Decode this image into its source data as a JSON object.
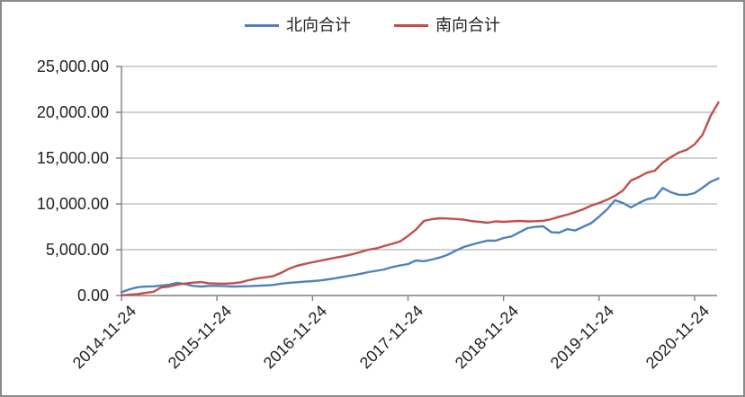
{
  "page": {
    "background": "#ffffff",
    "border_color": "#8a8a8a"
  },
  "chart_data": {
    "type": "line",
    "title": "",
    "legend_position": "top",
    "grid": true,
    "axis_color": "#7f7f7f",
    "grid_color": "#a3a3a3",
    "ylim": [
      0,
      25000
    ],
    "y_tick_labels": [
      "25,000.00",
      "20,000.00",
      "15,000.00",
      "10,000.00",
      "5,000.00",
      "0.00"
    ],
    "y_tick_values": [
      25000,
      20000,
      15000,
      10000,
      5000,
      0
    ],
    "x_tick_labels": [
      "2014-11-24",
      "2015-11-24",
      "2016-11-24",
      "2017-11-24",
      "2018-11-24",
      "2019-11-24",
      "2020-11-24"
    ],
    "x_tick_month_index": [
      0,
      12,
      24,
      36,
      48,
      60,
      72
    ],
    "x": [
      "2014-11",
      "2014-12",
      "2015-01",
      "2015-02",
      "2015-03",
      "2015-04",
      "2015-05",
      "2015-06",
      "2015-07",
      "2015-08",
      "2015-09",
      "2015-10",
      "2015-11",
      "2015-12",
      "2016-01",
      "2016-02",
      "2016-03",
      "2016-04",
      "2016-05",
      "2016-06",
      "2016-07",
      "2016-08",
      "2016-09",
      "2016-10",
      "2016-11",
      "2016-12",
      "2017-01",
      "2017-02",
      "2017-03",
      "2017-04",
      "2017-05",
      "2017-06",
      "2017-07",
      "2017-08",
      "2017-09",
      "2017-10",
      "2017-11",
      "2017-12",
      "2018-01",
      "2018-02",
      "2018-03",
      "2018-04",
      "2018-05",
      "2018-06",
      "2018-07",
      "2018-08",
      "2018-09",
      "2018-10",
      "2018-11",
      "2018-12",
      "2019-01",
      "2019-02",
      "2019-03",
      "2019-04",
      "2019-05",
      "2019-06",
      "2019-07",
      "2019-08",
      "2019-09",
      "2019-10",
      "2019-11",
      "2019-12",
      "2020-01",
      "2020-02",
      "2020-03",
      "2020-04",
      "2020-05",
      "2020-06",
      "2020-07",
      "2020-08",
      "2020-09",
      "2020-10",
      "2020-11",
      "2020-12",
      "2021-01",
      "2021-02"
    ],
    "series": [
      {
        "name": "北向合计",
        "color": "#4F81BD",
        "values": [
          350,
          680,
          900,
          970,
          1000,
          1080,
          1180,
          1380,
          1250,
          1050,
          980,
          1050,
          1050,
          1020,
          980,
          1000,
          1020,
          1060,
          1100,
          1150,
          1280,
          1380,
          1440,
          1510,
          1570,
          1650,
          1760,
          1900,
          2060,
          2200,
          2360,
          2550,
          2700,
          2840,
          3100,
          3280,
          3430,
          3820,
          3750,
          3920,
          4150,
          4450,
          4900,
          5290,
          5550,
          5780,
          6000,
          5980,
          6270,
          6450,
          6900,
          7350,
          7500,
          7550,
          6900,
          6860,
          7250,
          7100,
          7500,
          7900,
          8600,
          9400,
          10400,
          10100,
          9610,
          10100,
          10500,
          10700,
          11740,
          11270,
          11000,
          10980,
          11180,
          11760,
          12400,
          12780
        ]
      },
      {
        "name": "南向合计",
        "color": "#C0504D",
        "values": [
          20,
          90,
          160,
          280,
          400,
          880,
          980,
          1180,
          1300,
          1400,
          1470,
          1330,
          1300,
          1290,
          1340,
          1440,
          1680,
          1850,
          1980,
          2100,
          2450,
          2900,
          3230,
          3440,
          3630,
          3800,
          3980,
          4150,
          4300,
          4500,
          4740,
          5000,
          5140,
          5400,
          5640,
          5900,
          6500,
          7200,
          8140,
          8330,
          8430,
          8400,
          8350,
          8280,
          8120,
          8040,
          7940,
          8100,
          8040,
          8100,
          8140,
          8090,
          8110,
          8160,
          8330,
          8600,
          8820,
          9100,
          9410,
          9800,
          10100,
          10450,
          10880,
          11470,
          12550,
          12940,
          13400,
          13630,
          14500,
          15100,
          15600,
          15900,
          16500,
          17550,
          19600,
          21080
        ]
      }
    ]
  }
}
